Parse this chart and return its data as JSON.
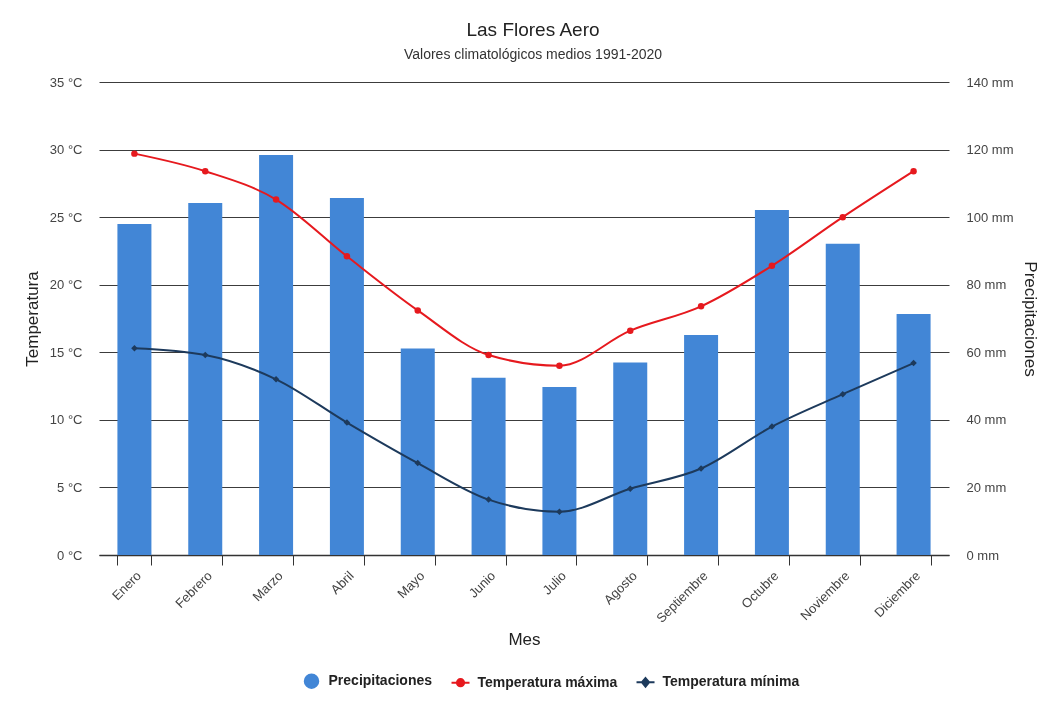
{
  "chart_data": {
    "type": "bar",
    "title": "Las Flores Aero",
    "subtitle": "Valores climatológicos medios 1991-2020",
    "xlabel": "Mes",
    "ylabel": "Temperatura",
    "y2label": "Precipitaciones",
    "categories": [
      "Enero",
      "Febrero",
      "Marzo",
      "Abril",
      "Mayo",
      "Junio",
      "Julio",
      "Agosto",
      "Septiembre",
      "Octubre",
      "Noviembre",
      "Diciembre"
    ],
    "series": [
      {
        "name": "Precipitaciones",
        "axis": "y2",
        "color": "#4286d6",
        "values": [
          98.0,
          104.2,
          118.4,
          105.7,
          61.1,
          52.5,
          49.7,
          57.0,
          65.1,
          102.1,
          92.1,
          71.3
        ]
      },
      {
        "name": "Temperatura máxima",
        "type": "line",
        "marker": "circle",
        "color": "#e6191e",
        "values": [
          29.7,
          28.4,
          26.3,
          22.1,
          18.1,
          14.8,
          14.0,
          16.6,
          18.4,
          21.4,
          25.0,
          28.4
        ]
      },
      {
        "name": "Temperatura mínima",
        "type": "line",
        "marker": "diamond",
        "color": "#1d3a5c",
        "values": [
          15.3,
          14.8,
          13.0,
          9.8,
          6.8,
          4.1,
          3.2,
          4.9,
          6.4,
          9.5,
          11.9,
          14.2
        ]
      }
    ],
    "ylim": [
      0,
      35
    ],
    "yticks": [
      {
        "value": 0,
        "label": "0 °C"
      },
      {
        "value": 5,
        "label": "5 °C"
      },
      {
        "value": 10,
        "label": "10 °C"
      },
      {
        "value": 15,
        "label": "15 °C"
      },
      {
        "value": 20,
        "label": "20 °C"
      },
      {
        "value": 25,
        "label": "25 °C"
      },
      {
        "value": 30,
        "label": "30 °C"
      },
      {
        "value": 35,
        "label": "35 °C"
      }
    ],
    "y2lim": [
      0,
      140
    ],
    "y2ticks": [
      {
        "value": 0,
        "label": "0 mm"
      },
      {
        "value": 20,
        "label": "20 mm"
      },
      {
        "value": 40,
        "label": "40 mm"
      },
      {
        "value": 60,
        "label": "60 mm"
      },
      {
        "value": 80,
        "label": "80 mm"
      },
      {
        "value": 100,
        "label": "100 mm"
      },
      {
        "value": 120,
        "label": "120 mm"
      },
      {
        "value": 140,
        "label": "140 mm"
      }
    ],
    "grid": "y",
    "legend": "bottom"
  }
}
